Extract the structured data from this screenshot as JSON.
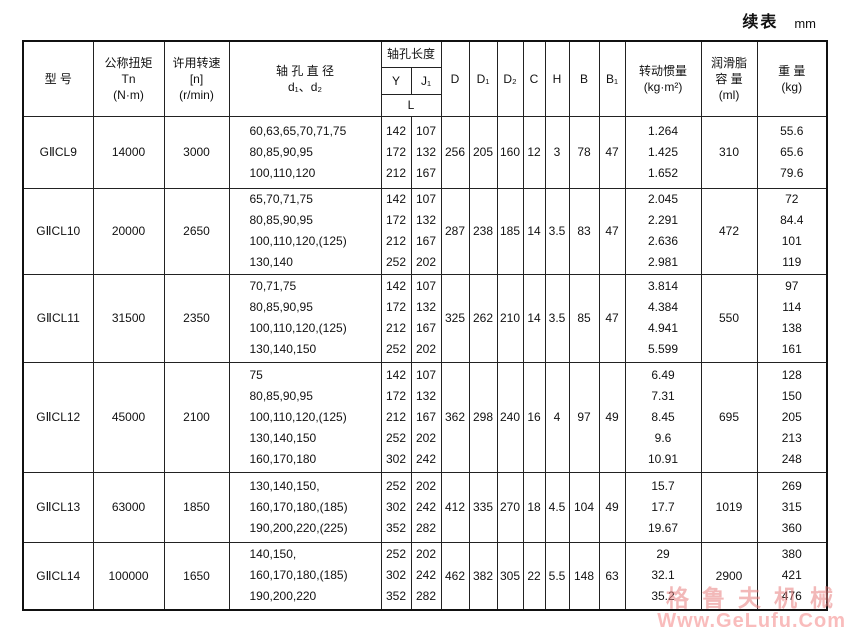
{
  "page": {
    "continuation_label": "续表",
    "unit_label": "mm"
  },
  "watermark": {
    "line1": "格鲁夫机械",
    "line2": "Www.GeLufu.Com"
  },
  "table": {
    "headers": {
      "model": "型  号",
      "torque": [
        "公称扭矩",
        "Tn",
        "(N·m)"
      ],
      "speed": [
        "许用转速",
        "[n]",
        "(r/min)"
      ],
      "bore_diameter": [
        "轴  孔  直  径",
        "d₁、d₂"
      ],
      "bore_length": "轴孔长度",
      "bore_length_y": "Y",
      "bore_length_j1": "J₁",
      "bore_length_l": "L",
      "dims": [
        "D",
        "D₁",
        "D₂",
        "C",
        "H",
        "B",
        "B₁"
      ],
      "inertia": [
        "转动惯量",
        "(kg·m²)"
      ],
      "grease": [
        "润滑脂",
        "容  量",
        "(ml)"
      ],
      "weight": [
        "重  量",
        "(kg)"
      ]
    },
    "rows": [
      {
        "model": "GⅡCL9",
        "torque": "14000",
        "speed": "3000",
        "bores": [
          "60,63,65,70,71,75",
          "80,85,90,95",
          "100,110,120"
        ],
        "y": [
          "142",
          "172",
          "212"
        ],
        "j1": [
          "107",
          "132",
          "167"
        ],
        "D": "256",
        "D1": "205",
        "D2": "160",
        "C": "12",
        "H": "3",
        "B": "78",
        "B1": "47",
        "inertia": [
          "1.264",
          "1.425",
          "1.652"
        ],
        "grease": "310",
        "weight": [
          "55.6",
          "65.6",
          "79.6"
        ]
      },
      {
        "model": "GⅡCL10",
        "torque": "20000",
        "speed": "2650",
        "bores": [
          "65,70,71,75",
          "80,85,90,95",
          "100,110,120,(125)",
          "130,140"
        ],
        "y": [
          "142",
          "172",
          "212",
          "252"
        ],
        "j1": [
          "107",
          "132",
          "167",
          "202"
        ],
        "D": "287",
        "D1": "238",
        "D2": "185",
        "C": "14",
        "H": "3.5",
        "B": "83",
        "B1": "47",
        "inertia": [
          "2.045",
          "2.291",
          "2.636",
          "2.981"
        ],
        "grease": "472",
        "weight": [
          "72",
          "84.4",
          "101",
          "119"
        ]
      },
      {
        "model": "GⅡCL11",
        "torque": "31500",
        "speed": "2350",
        "bores": [
          "70,71,75",
          "80,85,90,95",
          "100,110,120,(125)",
          "130,140,150"
        ],
        "y": [
          "142",
          "172",
          "212",
          "252"
        ],
        "j1": [
          "107",
          "132",
          "167",
          "202"
        ],
        "D": "325",
        "D1": "262",
        "D2": "210",
        "C": "14",
        "H": "3.5",
        "B": "85",
        "B1": "47",
        "inertia": [
          "3.814",
          "4.384",
          "4.941",
          "5.599"
        ],
        "grease": "550",
        "weight": [
          "97",
          "114",
          "138",
          "161"
        ]
      },
      {
        "model": "GⅡCL12",
        "torque": "45000",
        "speed": "2100",
        "bores": [
          "75",
          "80,85,90,95",
          "100,110,120,(125)",
          "130,140,150",
          "160,170,180"
        ],
        "y": [
          "142",
          "172",
          "212",
          "252",
          "302"
        ],
        "j1": [
          "107",
          "132",
          "167",
          "202",
          "242"
        ],
        "D": "362",
        "D1": "298",
        "D2": "240",
        "C": "16",
        "H": "4",
        "B": "97",
        "B1": "49",
        "inertia": [
          "6.49",
          "7.31",
          "8.45",
          "9.6",
          "10.91"
        ],
        "grease": "695",
        "weight": [
          "128",
          "150",
          "205",
          "213",
          "248"
        ]
      },
      {
        "model": "GⅡCL13",
        "torque": "63000",
        "speed": "1850",
        "bores": [
          "130,140,150,",
          "160,170,180,(185)",
          "190,200,220,(225)"
        ],
        "y": [
          "252",
          "302",
          "352"
        ],
        "j1": [
          "202",
          "242",
          "282"
        ],
        "D": "412",
        "D1": "335",
        "D2": "270",
        "C": "18",
        "H": "4.5",
        "B": "104",
        "B1": "49",
        "inertia": [
          "15.7",
          "17.7",
          "19.67"
        ],
        "grease": "1019",
        "weight": [
          "269",
          "315",
          "360"
        ]
      },
      {
        "model": "GⅡCL14",
        "torque": "100000",
        "speed": "1650",
        "bores": [
          "140,150,",
          "160,170,180,(185)",
          "190,200,220"
        ],
        "y": [
          "252",
          "302",
          "352"
        ],
        "j1": [
          "202",
          "242",
          "282"
        ],
        "D": "462",
        "D1": "382",
        "D2": "305",
        "C": "22",
        "H": "5.5",
        "B": "148",
        "B1": "63",
        "inertia": [
          "29",
          "32.1",
          "35.2"
        ],
        "grease": "2900",
        "weight": [
          "380",
          "421",
          "476"
        ]
      }
    ]
  }
}
